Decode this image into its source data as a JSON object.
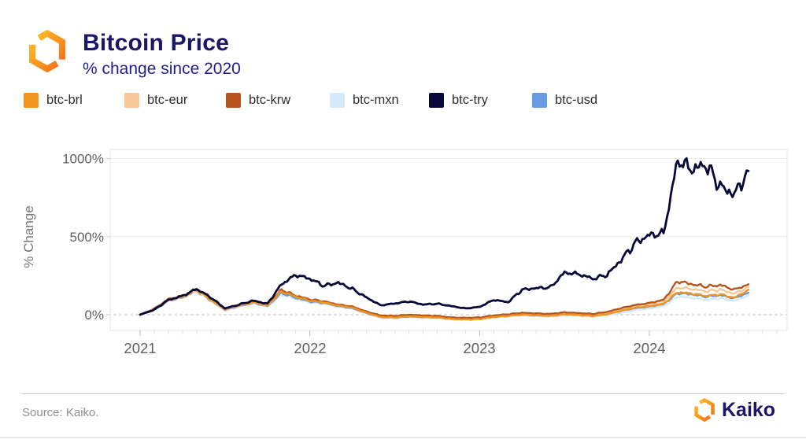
{
  "header": {
    "title": "Bitcoin Price",
    "subtitle": "% change since 2020"
  },
  "legend": [
    {
      "label": "btc-brl",
      "color": "#F0941F"
    },
    {
      "label": "btc-eur",
      "color": "#F5C896"
    },
    {
      "label": "btc-krw",
      "color": "#B5551D"
    },
    {
      "label": "btc-mxn",
      "color": "#D6E9F8"
    },
    {
      "label": "btc-try",
      "color": "#08083A"
    },
    {
      "label": "btc-usd",
      "color": "#649BE4"
    }
  ],
  "footer": {
    "source": "Source: Kaiko.",
    "brand": "Kaiko"
  },
  "brand_colors": {
    "accent_orange": "#F7941D",
    "accent_orange_deep": "#F26B1D",
    "navy": "#1b1668"
  },
  "chart_data": {
    "type": "line",
    "title": "Bitcoin Price",
    "subtitle": "% change since 2020",
    "ylabel": "% Change",
    "xlabel": "",
    "yticks": [
      0,
      500,
      1000
    ],
    "ytick_labels": [
      "0%",
      "500%",
      "1000%"
    ],
    "xticks": [
      "2021",
      "2022",
      "2023",
      "2024"
    ],
    "xlim": [
      2020.82,
      2024.81
    ],
    "ylim": [
      -100,
      1065
    ],
    "grid": "horizontal",
    "zero_line": "dashed",
    "legend_position": "top",
    "x": [
      2021.0,
      2021.083,
      2021.167,
      2021.25,
      2021.333,
      2021.417,
      2021.5,
      2021.583,
      2021.667,
      2021.75,
      2021.833,
      2021.917,
      2022.0,
      2022.083,
      2022.167,
      2022.25,
      2022.333,
      2022.417,
      2022.5,
      2022.583,
      2022.667,
      2022.75,
      2022.833,
      2022.917,
      2023.0,
      2023.083,
      2023.167,
      2023.25,
      2023.333,
      2023.417,
      2023.5,
      2023.583,
      2023.667,
      2023.75,
      2023.833,
      2023.917,
      2024.0,
      2024.083,
      2024.167,
      2024.25,
      2024.333,
      2024.417,
      2024.5,
      2024.583
    ],
    "series": [
      {
        "name": "btc-brl",
        "color": "#F0941F",
        "values": [
          0,
          35,
          95,
          115,
          160,
          95,
          35,
          60,
          80,
          60,
          150,
          115,
          90,
          78,
          58,
          45,
          12,
          -15,
          -18,
          -10,
          -15,
          -18,
          -28,
          -30,
          -28,
          -15,
          -8,
          0,
          -5,
          -8,
          2,
          -2,
          -8,
          3,
          25,
          45,
          55,
          70,
          145,
          135,
          120,
          130,
          108,
          160
        ]
      },
      {
        "name": "btc-eur",
        "color": "#F5C896",
        "values": [
          0,
          32,
          92,
          112,
          155,
          92,
          32,
          58,
          78,
          58,
          155,
          118,
          95,
          82,
          62,
          50,
          18,
          -8,
          -10,
          -3,
          -8,
          -10,
          -20,
          -22,
          -20,
          -8,
          0,
          8,
          3,
          0,
          10,
          6,
          0,
          12,
          35,
          55,
          68,
          85,
          175,
          165,
          150,
          160,
          135,
          175
        ]
      },
      {
        "name": "btc-krw",
        "color": "#B5551D",
        "values": [
          0,
          38,
          100,
          120,
          165,
          100,
          38,
          62,
          82,
          62,
          160,
          122,
          98,
          85,
          65,
          52,
          20,
          -5,
          -8,
          0,
          -5,
          -8,
          -18,
          -20,
          -18,
          -5,
          3,
          12,
          8,
          5,
          15,
          10,
          5,
          18,
          42,
          62,
          75,
          95,
          215,
          195,
          180,
          190,
          160,
          195
        ]
      },
      {
        "name": "btc-mxn",
        "color": "#D6E9F8",
        "values": [
          0,
          30,
          88,
          108,
          150,
          88,
          28,
          52,
          72,
          52,
          130,
          100,
          80,
          70,
          50,
          38,
          8,
          -18,
          -22,
          -15,
          -20,
          -22,
          -30,
          -32,
          -30,
          -18,
          -12,
          -5,
          -10,
          -12,
          -5,
          -8,
          -14,
          -5,
          12,
          30,
          40,
          55,
          115,
          108,
          95,
          105,
          88,
          125
        ]
      },
      {
        "name": "btc-try",
        "color": "#08083A",
        "values": [
          0,
          32,
          95,
          120,
          165,
          110,
          40,
          65,
          90,
          70,
          195,
          255,
          230,
          185,
          205,
          165,
          110,
          60,
          72,
          85,
          65,
          70,
          55,
          40,
          50,
          95,
          80,
          160,
          170,
          175,
          270,
          260,
          230,
          255,
          350,
          460,
          510,
          520,
          990,
          930,
          960,
          820,
          770,
          920
        ]
      },
      {
        "name": "btc-usd",
        "color": "#649BE4",
        "values": [
          0,
          30,
          90,
          110,
          155,
          90,
          30,
          55,
          75,
          55,
          140,
          108,
          85,
          75,
          55,
          42,
          10,
          -15,
          -18,
          -12,
          -15,
          -18,
          -25,
          -28,
          -25,
          -12,
          -5,
          2,
          -3,
          -5,
          3,
          0,
          -5,
          5,
          25,
          42,
          52,
          68,
          138,
          130,
          115,
          125,
          105,
          142
        ]
      }
    ]
  }
}
